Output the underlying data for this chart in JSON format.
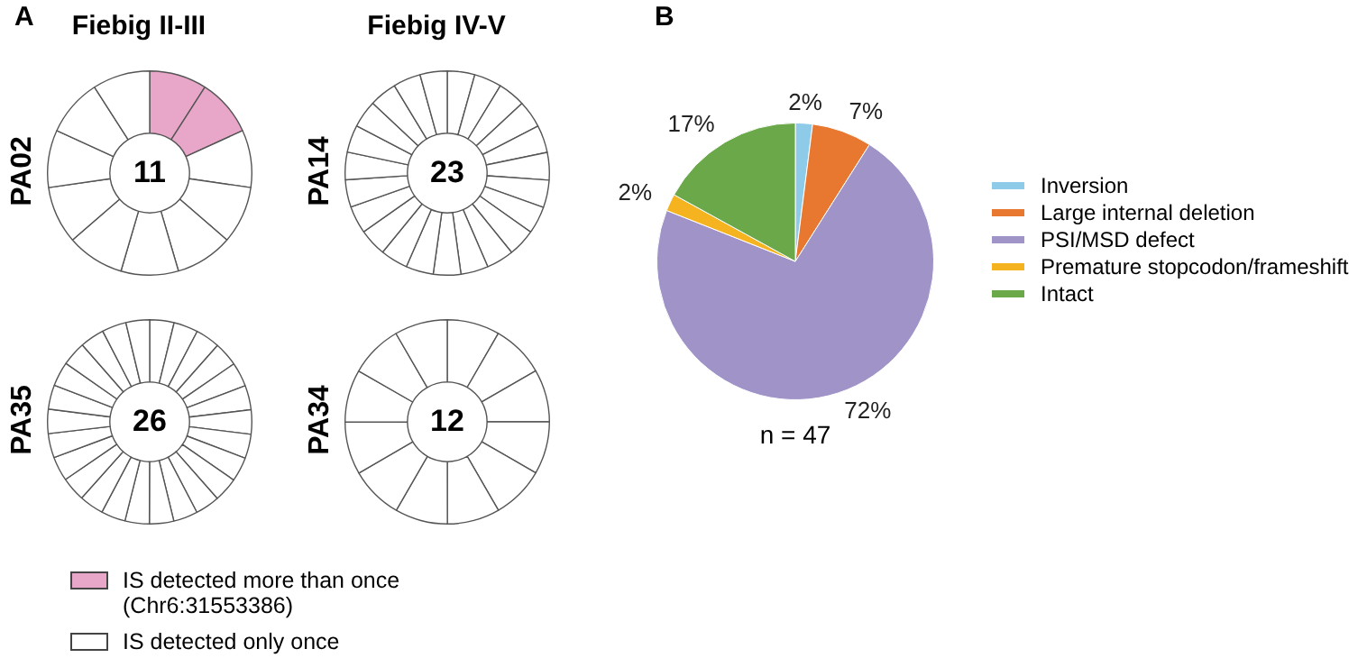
{
  "chart_data": [
    {
      "type": "donut",
      "title": "Fiebig II-III",
      "ylabel": "PA02",
      "annotations": [
        "A",
        "11"
      ],
      "categories": [
        null,
        null,
        null,
        null,
        null,
        null,
        null,
        null,
        null,
        null,
        null
      ],
      "values": [
        9.09,
        9.09,
        9.09,
        9.09,
        9.09,
        9.09,
        9.09,
        9.09,
        9.09,
        9.09,
        9.1
      ],
      "colors": [
        "#e8a6c8",
        "#e8a6c8",
        "#ffffff",
        "#ffffff",
        "#ffffff",
        "#ffffff",
        "#ffffff",
        "#ffffff",
        "#ffffff",
        "#ffffff",
        "#ffffff"
      ]
    },
    {
      "type": "donut",
      "title": "Fiebig IV-V",
      "ylabel": "PA14",
      "annotations": [
        "23"
      ],
      "categories": [
        null,
        null,
        null,
        null,
        null,
        null,
        null,
        null,
        null,
        null,
        null,
        null,
        null,
        null,
        null,
        null,
        null,
        null,
        null,
        null,
        null,
        null,
        null
      ],
      "values": [
        4.35,
        4.35,
        4.35,
        4.35,
        4.35,
        4.35,
        4.35,
        4.35,
        4.35,
        4.35,
        4.35,
        4.35,
        4.35,
        4.35,
        4.35,
        4.35,
        4.35,
        4.35,
        4.35,
        4.35,
        4.35,
        4.35,
        4.3
      ],
      "colors": [
        "#ffffff",
        "#ffffff",
        "#ffffff",
        "#ffffff",
        "#ffffff",
        "#ffffff",
        "#ffffff",
        "#ffffff",
        "#ffffff",
        "#ffffff",
        "#ffffff",
        "#ffffff",
        "#ffffff",
        "#ffffff",
        "#ffffff",
        "#ffffff",
        "#ffffff",
        "#ffffff",
        "#ffffff",
        "#ffffff",
        "#ffffff",
        "#ffffff",
        "#ffffff"
      ]
    },
    {
      "type": "donut",
      "ylabel": "PA35",
      "annotations": [
        "26"
      ],
      "categories": [
        null,
        null,
        null,
        null,
        null,
        null,
        null,
        null,
        null,
        null,
        null,
        null,
        null,
        null,
        null,
        null,
        null,
        null,
        null,
        null,
        null,
        null,
        null,
        null,
        null,
        null
      ],
      "values": [
        3.85,
        3.85,
        3.85,
        3.85,
        3.85,
        3.85,
        3.85,
        3.85,
        3.85,
        3.85,
        3.85,
        3.85,
        3.85,
        3.85,
        3.85,
        3.85,
        3.85,
        3.85,
        3.85,
        3.85,
        3.85,
        3.85,
        3.85,
        3.85,
        3.85,
        3.75
      ],
      "colors": [
        "#ffffff",
        "#ffffff",
        "#ffffff",
        "#ffffff",
        "#ffffff",
        "#ffffff",
        "#ffffff",
        "#ffffff",
        "#ffffff",
        "#ffffff",
        "#ffffff",
        "#ffffff",
        "#ffffff",
        "#ffffff",
        "#ffffff",
        "#ffffff",
        "#ffffff",
        "#ffffff",
        "#ffffff",
        "#ffffff",
        "#ffffff",
        "#ffffff",
        "#ffffff",
        "#ffffff",
        "#ffffff",
        "#ffffff"
      ]
    },
    {
      "type": "donut",
      "ylabel": "PA34",
      "annotations": [
        "12"
      ],
      "categories": [
        null,
        null,
        null,
        null,
        null,
        null,
        null,
        null,
        null,
        null,
        null,
        null
      ],
      "values": [
        8.33,
        8.33,
        8.33,
        8.33,
        8.33,
        8.33,
        8.33,
        8.33,
        8.33,
        8.33,
        8.33,
        8.37
      ],
      "colors": [
        "#ffffff",
        "#ffffff",
        "#ffffff",
        "#ffffff",
        "#ffffff",
        "#ffffff",
        "#ffffff",
        "#ffffff",
        "#ffffff",
        "#ffffff",
        "#ffffff",
        "#ffffff"
      ]
    },
    {
      "type": "other",
      "annotations": [
        "IS detected more than once (Chr6:31553386)",
        "IS detected only once"
      ],
      "colors": [
        "#e8a6c8",
        "#ffffff"
      ]
    },
    {
      "type": "pie",
      "annotations": [
        "B",
        "n = 47"
      ],
      "categories": [
        "Inversion",
        "Large internal deletion",
        "PSI/MSD defect",
        "Premature stopcodon/frameshift",
        "Intact"
      ],
      "values": [
        2,
        7,
        72,
        2,
        17
      ],
      "colors": [
        "#8ecbe9",
        "#e8782f",
        "#a093c8",
        "#f5b320",
        "#6aa84a"
      ],
      "value_labels": [
        "2%",
        "7%",
        "72%",
        "2%",
        "17%"
      ],
      "legend": "right"
    }
  ]
}
